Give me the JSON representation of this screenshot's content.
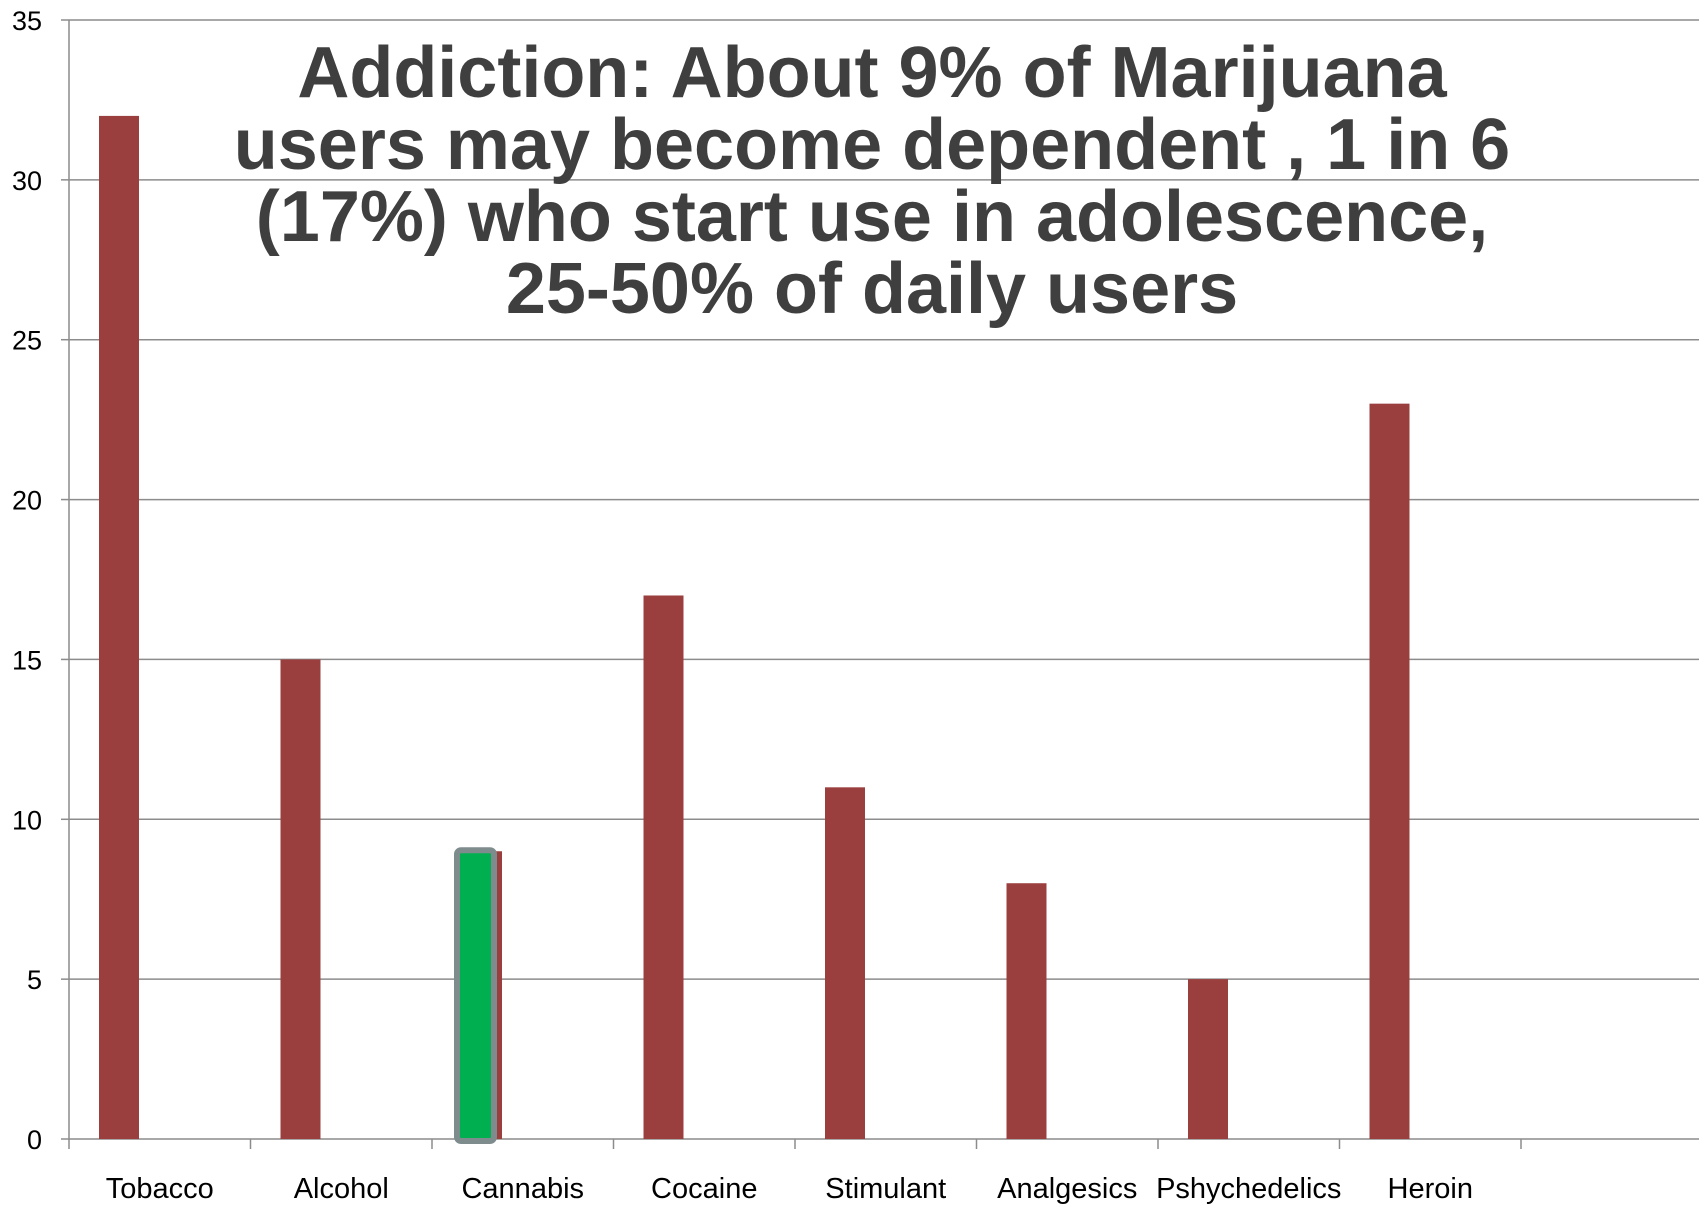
{
  "chart_data": {
    "type": "bar",
    "title_lines": [
      "Addiction: About 9% of Marijuana",
      "users may become dependent , 1 in 6",
      "(17%) who start use in adolescence,",
      "25-50% of daily users"
    ],
    "categories": [
      "Tobacco",
      "Alcohol",
      "Cannabis",
      "Cocaine",
      "Stimulant",
      "Analgesics",
      "Pshychedelics",
      "Heroin"
    ],
    "values": [
      32,
      15,
      9,
      17,
      11,
      8,
      5,
      23
    ],
    "highlight_index": 2,
    "xlabel": "",
    "ylabel": "",
    "ylim": [
      0,
      35
    ],
    "yticks": [
      0,
      5,
      10,
      15,
      20,
      25,
      30,
      35
    ],
    "grid": true,
    "legend": "none",
    "colors": {
      "bar": "#9b3f3e",
      "highlight_fill": "#00b050",
      "highlight_border": "#7f8c8d",
      "grid": "#8c8c8c",
      "axis": "#8c8c8c",
      "title": "#3f3f3f"
    }
  }
}
